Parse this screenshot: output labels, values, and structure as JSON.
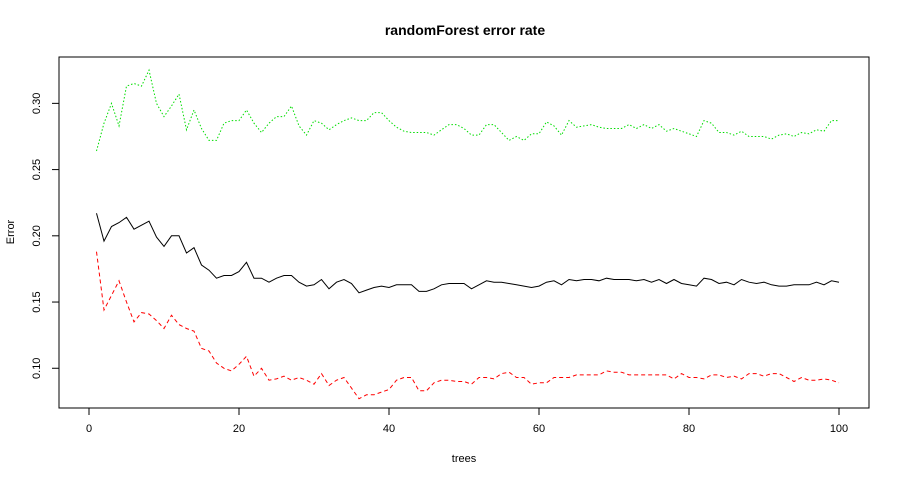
{
  "chart_data": {
    "type": "line",
    "title": "randomForest error rate",
    "xlabel": "trees",
    "ylabel": "Error",
    "xlim": [
      -4,
      104
    ],
    "ylim": [
      0.07,
      0.335
    ],
    "x_ticks": [
      0,
      20,
      40,
      60,
      80,
      100
    ],
    "y_ticks": [
      0.1,
      0.15,
      0.2,
      0.25,
      0.3
    ],
    "x_tick_labels": [
      "0",
      "20",
      "40",
      "60",
      "80",
      "100"
    ],
    "y_tick_labels": [
      "0.10",
      "0.15",
      "0.20",
      "0.25",
      "0.30"
    ],
    "grid": false,
    "legend": "none",
    "x": [
      1,
      2,
      3,
      4,
      5,
      6,
      7,
      8,
      9,
      10,
      11,
      12,
      13,
      14,
      15,
      16,
      17,
      18,
      19,
      20,
      21,
      22,
      23,
      24,
      25,
      26,
      27,
      28,
      29,
      30,
      31,
      32,
      33,
      34,
      35,
      36,
      37,
      38,
      39,
      40,
      41,
      42,
      43,
      44,
      45,
      46,
      47,
      48,
      49,
      50,
      51,
      52,
      53,
      54,
      55,
      56,
      57,
      58,
      59,
      60,
      61,
      62,
      63,
      64,
      65,
      66,
      67,
      68,
      69,
      70,
      71,
      72,
      73,
      74,
      75,
      76,
      77,
      78,
      79,
      80,
      81,
      82,
      83,
      84,
      85,
      86,
      87,
      88,
      89,
      90,
      91,
      92,
      93,
      94,
      95,
      96,
      97,
      98,
      99,
      100
    ],
    "series": [
      {
        "color": "#000000",
        "dash": "solid",
        "values": [
          0.217,
          0.196,
          0.207,
          0.21,
          0.214,
          0.205,
          0.208,
          0.211,
          0.199,
          0.192,
          0.2,
          0.2,
          0.187,
          0.191,
          0.178,
          0.174,
          0.168,
          0.17,
          0.17,
          0.173,
          0.18,
          0.168,
          0.168,
          0.165,
          0.168,
          0.17,
          0.17,
          0.165,
          0.162,
          0.163,
          0.167,
          0.16,
          0.165,
          0.167,
          0.164,
          0.157,
          0.159,
          0.161,
          0.162,
          0.161,
          0.163,
          0.163,
          0.163,
          0.158,
          0.158,
          0.16,
          0.163,
          0.164,
          0.164,
          0.164,
          0.16,
          0.163,
          0.166,
          0.165,
          0.165,
          0.164,
          0.163,
          0.162,
          0.161,
          0.162,
          0.165,
          0.166,
          0.163,
          0.167,
          0.166,
          0.167,
          0.167,
          0.166,
          0.168,
          0.167,
          0.167,
          0.167,
          0.166,
          0.167,
          0.165,
          0.167,
          0.164,
          0.167,
          0.164,
          0.163,
          0.162,
          0.168,
          0.167,
          0.164,
          0.165,
          0.163,
          0.167,
          0.165,
          0.164,
          0.165,
          0.163,
          0.162,
          0.162,
          0.163,
          0.163,
          0.163,
          0.165,
          0.163,
          0.166,
          0.165
        ]
      },
      {
        "color": "#ff0000",
        "dash": "dashed",
        "values": [
          0.188,
          0.144,
          0.155,
          0.166,
          0.15,
          0.135,
          0.142,
          0.141,
          0.136,
          0.13,
          0.14,
          0.133,
          0.13,
          0.128,
          0.115,
          0.113,
          0.104,
          0.1,
          0.098,
          0.103,
          0.109,
          0.094,
          0.1,
          0.091,
          0.092,
          0.094,
          0.091,
          0.093,
          0.091,
          0.088,
          0.096,
          0.087,
          0.091,
          0.093,
          0.085,
          0.077,
          0.08,
          0.08,
          0.082,
          0.084,
          0.091,
          0.093,
          0.093,
          0.083,
          0.083,
          0.089,
          0.091,
          0.091,
          0.09,
          0.09,
          0.088,
          0.093,
          0.093,
          0.092,
          0.096,
          0.097,
          0.093,
          0.093,
          0.088,
          0.089,
          0.089,
          0.093,
          0.093,
          0.093,
          0.095,
          0.095,
          0.095,
          0.095,
          0.098,
          0.097,
          0.097,
          0.095,
          0.095,
          0.095,
          0.095,
          0.095,
          0.095,
          0.092,
          0.096,
          0.093,
          0.093,
          0.092,
          0.095,
          0.095,
          0.093,
          0.094,
          0.092,
          0.096,
          0.096,
          0.094,
          0.096,
          0.096,
          0.093,
          0.09,
          0.093,
          0.091,
          0.091,
          0.092,
          0.091,
          0.089
        ]
      },
      {
        "color": "#00dd00",
        "dash": "dotted",
        "values": [
          0.264,
          0.285,
          0.3,
          0.283,
          0.313,
          0.315,
          0.313,
          0.325,
          0.3,
          0.29,
          0.298,
          0.307,
          0.28,
          0.295,
          0.281,
          0.272,
          0.272,
          0.285,
          0.287,
          0.287,
          0.295,
          0.285,
          0.278,
          0.285,
          0.29,
          0.29,
          0.298,
          0.283,
          0.276,
          0.287,
          0.285,
          0.28,
          0.284,
          0.287,
          0.289,
          0.287,
          0.287,
          0.293,
          0.293,
          0.287,
          0.282,
          0.279,
          0.278,
          0.278,
          0.278,
          0.276,
          0.28,
          0.284,
          0.284,
          0.281,
          0.276,
          0.276,
          0.284,
          0.284,
          0.278,
          0.272,
          0.275,
          0.272,
          0.277,
          0.277,
          0.286,
          0.283,
          0.276,
          0.287,
          0.282,
          0.283,
          0.284,
          0.282,
          0.281,
          0.281,
          0.281,
          0.284,
          0.281,
          0.284,
          0.281,
          0.284,
          0.279,
          0.281,
          0.279,
          0.277,
          0.275,
          0.287,
          0.285,
          0.278,
          0.278,
          0.276,
          0.279,
          0.275,
          0.275,
          0.275,
          0.273,
          0.276,
          0.277,
          0.275,
          0.278,
          0.277,
          0.28,
          0.279,
          0.287,
          0.287
        ]
      }
    ]
  }
}
